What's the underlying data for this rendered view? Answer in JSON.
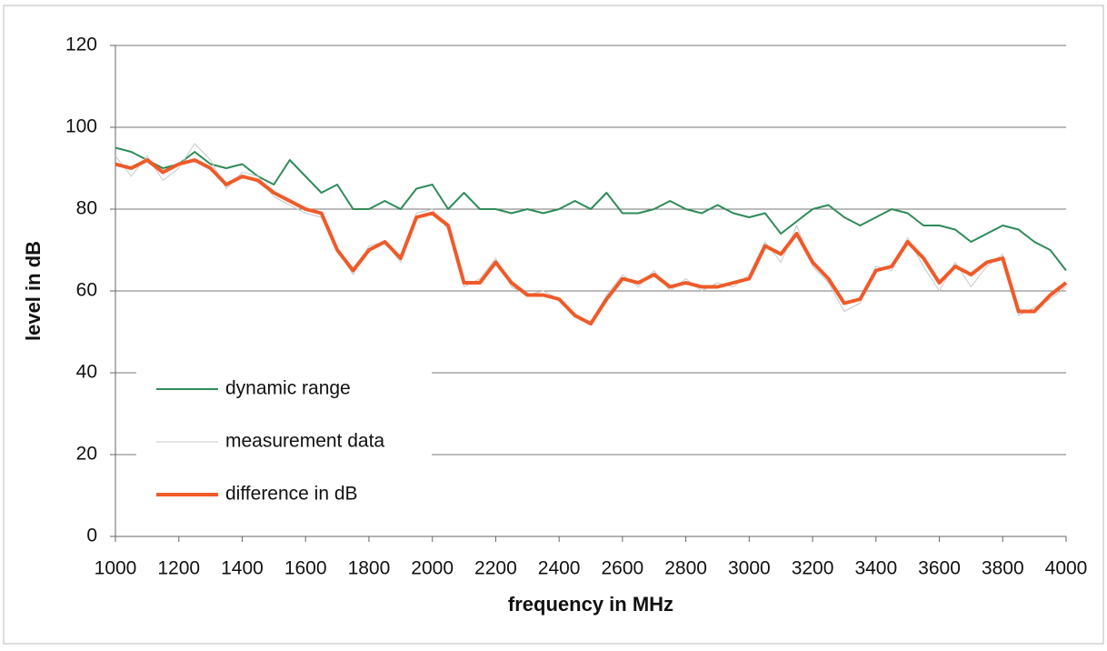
{
  "chart_data": {
    "type": "line",
    "xlabel": "frequency in MHz",
    "ylabel": "level in dB",
    "x": [
      1000,
      1050,
      1100,
      1150,
      1200,
      1250,
      1300,
      1350,
      1400,
      1450,
      1500,
      1550,
      1600,
      1650,
      1700,
      1750,
      1800,
      1850,
      1900,
      1950,
      2000,
      2050,
      2100,
      2150,
      2200,
      2250,
      2300,
      2350,
      2400,
      2450,
      2500,
      2550,
      2600,
      2650,
      2700,
      2750,
      2800,
      2850,
      2900,
      2950,
      3000,
      3050,
      3100,
      3150,
      3200,
      3250,
      3300,
      3350,
      3400,
      3450,
      3500,
      3550,
      3600,
      3650,
      3700,
      3750,
      3800,
      3850,
      3900,
      3950,
      4000
    ],
    "series": [
      {
        "name": "dynamic range",
        "color": "#2e8b57",
        "width": 2,
        "values": [
          95,
          94,
          92,
          90,
          91,
          94,
          91,
          90,
          91,
          88,
          86,
          92,
          88,
          84,
          86,
          80,
          80,
          82,
          80,
          85,
          86,
          80,
          84,
          80,
          80,
          79,
          80,
          79,
          80,
          82,
          80,
          84,
          79,
          79,
          80,
          82,
          80,
          79,
          81,
          79,
          78,
          79,
          74,
          77,
          80,
          81,
          78,
          76,
          78,
          80,
          79,
          76,
          76,
          75,
          72,
          74,
          76,
          75,
          72,
          70,
          65
        ]
      },
      {
        "name": "measurement data",
        "color": "#c8c8c8",
        "width": 1,
        "values": [
          93,
          88,
          93,
          87,
          90,
          96,
          92,
          85,
          89,
          88,
          83,
          81,
          79,
          78,
          70,
          64,
          71,
          72,
          67,
          79,
          80,
          75,
          61,
          63,
          68,
          61,
          59,
          60,
          58,
          54,
          52,
          59,
          64,
          61,
          65,
          60,
          63,
          60,
          62,
          61,
          64,
          72,
          67,
          76,
          66,
          62,
          55,
          57,
          66,
          65,
          73,
          66,
          60,
          67,
          61,
          66,
          69,
          54,
          56,
          58,
          61
        ]
      },
      {
        "name": "difference in dB",
        "color": "#f05a28",
        "width": 4,
        "values": [
          91,
          90,
          92,
          89,
          91,
          92,
          90,
          86,
          88,
          87,
          84,
          82,
          80,
          79,
          70,
          65,
          70,
          72,
          68,
          78,
          79,
          76,
          62,
          62,
          67,
          62,
          59,
          59,
          58,
          54,
          52,
          58,
          63,
          62,
          64,
          61,
          62,
          61,
          61,
          62,
          63,
          71,
          69,
          74,
          67,
          63,
          57,
          58,
          65,
          66,
          72,
          68,
          62,
          66,
          64,
          67,
          68,
          55,
          55,
          59,
          62
        ]
      }
    ],
    "xlim": [
      1000,
      4000
    ],
    "xticks": [
      1000,
      1200,
      1400,
      1600,
      1800,
      2000,
      2200,
      2400,
      2600,
      2800,
      3000,
      3200,
      3400,
      3600,
      3800,
      4000
    ],
    "ylim": [
      0,
      120
    ],
    "yticks": [
      0,
      20,
      40,
      60,
      80,
      100,
      120
    ],
    "grid": true,
    "legend": "lower left"
  }
}
